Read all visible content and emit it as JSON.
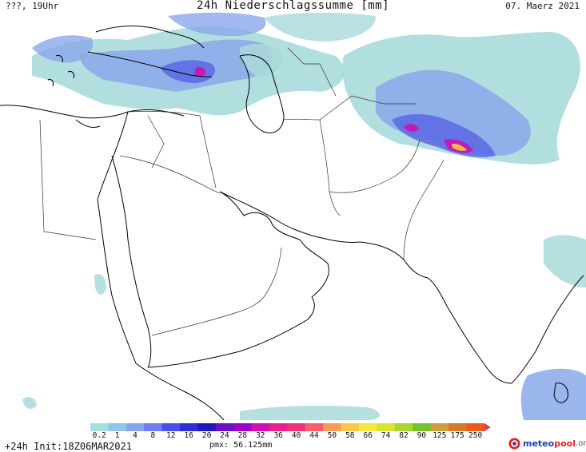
{
  "header": {
    "left": "???, 19Uhr",
    "title": "24h Niederschlagssumme [mm]",
    "right": "07. Maerz 2021"
  },
  "legend": {
    "ticks": [
      {
        "label": "0.2",
        "color": "#a6dede"
      },
      {
        "label": "1",
        "color": "#8fc8e6"
      },
      {
        "label": "4",
        "color": "#86a6ec"
      },
      {
        "label": "8",
        "color": "#6f7ef0"
      },
      {
        "label": "12",
        "color": "#4b4fe8"
      },
      {
        "label": "16",
        "color": "#2f2fd8"
      },
      {
        "label": "20",
        "color": "#2218b8"
      },
      {
        "label": "24",
        "color": "#6a10c8"
      },
      {
        "label": "28",
        "color": "#a000c8"
      },
      {
        "label": "32",
        "color": "#d010b0"
      },
      {
        "label": "36",
        "color": "#e8208c"
      },
      {
        "label": "40",
        "color": "#f0307a"
      },
      {
        "label": "44",
        "color": "#f6606a"
      },
      {
        "label": "50",
        "color": "#fa9a5a"
      },
      {
        "label": "58",
        "color": "#f8c84a"
      },
      {
        "label": "66",
        "color": "#f4e83a"
      },
      {
        "label": "74",
        "color": "#d6e432"
      },
      {
        "label": "82",
        "color": "#a8d62c"
      },
      {
        "label": "90",
        "color": "#76c22a"
      },
      {
        "label": "125",
        "color": "#c8a03c"
      },
      {
        "label": "175",
        "color": "#d67a2c"
      },
      {
        "label": "250",
        "color": "#e85a20"
      }
    ],
    "overflow_color": "#e83a3a"
  },
  "footer": {
    "left": "+24h Init:18Z06MAR2021",
    "pmx": "pmx: 56.125mm",
    "brand_1": "meteo",
    "brand_2": "pool",
    "brand_3": ".org"
  },
  "colors": {
    "light_precip": "#a9dada",
    "moderate_precip": "#8aa8ea",
    "heavy_precip": "#5e6de6",
    "intense_precip": "#c21ab6",
    "extreme_precip": "#f6c040",
    "coastline": "#000000",
    "border": "#333333"
  }
}
